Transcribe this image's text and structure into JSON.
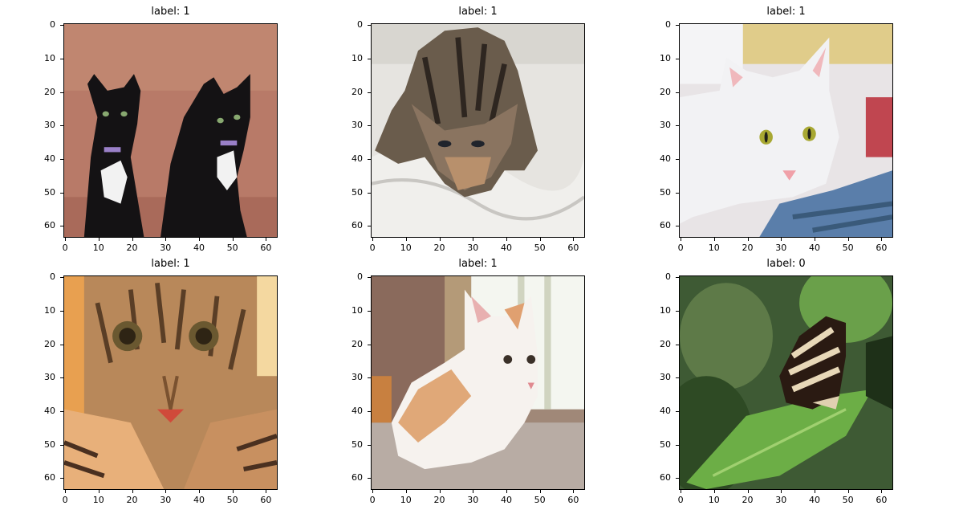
{
  "tick_labels": [
    "0",
    "10",
    "20",
    "30",
    "40",
    "50",
    "60"
  ],
  "panels": [
    {
      "title": "label: 1",
      "subject": "two-black-and-white-kittens"
    },
    {
      "title": "label: 1",
      "subject": "tabby-kitten-on-white-blanket"
    },
    {
      "title": "label: 1",
      "subject": "white-cat-lying-down"
    },
    {
      "title": "label: 1",
      "subject": "tabby-cat-face-closeup"
    },
    {
      "title": "label: 1",
      "subject": "orange-and-white-kitten-by-window"
    },
    {
      "title": "label: 0",
      "subject": "butterfly-on-green-leaf"
    }
  ]
}
